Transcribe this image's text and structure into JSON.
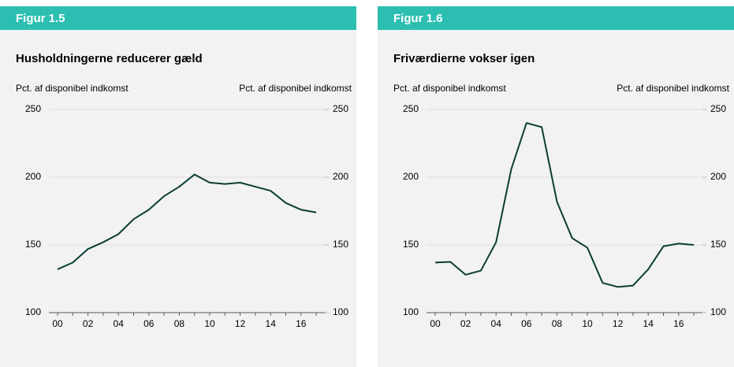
{
  "chart_data": [
    {
      "type": "line",
      "label": "Figur 1.5",
      "title": "Husholdningerne reducerer gæld",
      "ylabel": "Pct. af disponibel indkomst",
      "y2label": "Pct. af disponibel indkomst",
      "categories": [
        "00",
        null,
        "02",
        null,
        "04",
        null,
        "06",
        null,
        "08",
        null,
        "10",
        null,
        "12",
        null,
        "14",
        null,
        "16",
        null
      ],
      "series": [
        {
          "name": null,
          "color": "#0b3d35",
          "values": [
            132,
            137,
            147,
            152,
            158,
            169,
            176,
            186,
            193,
            202,
            196,
            195,
            196,
            193,
            190,
            181,
            176,
            174
          ]
        }
      ],
      "ylim": [
        100,
        250
      ],
      "yticks": [
        100,
        150,
        200,
        250
      ],
      "y2lim": [
        100,
        250
      ],
      "y2ticks": [
        100,
        150,
        200,
        250
      ],
      "grid": true
    },
    {
      "type": "line",
      "label": "Figur 1.6",
      "title": "Friværdierne vokser igen",
      "ylabel": "Pct. af disponibel indkomst",
      "y2label": "Pct. af disponibel indkomst",
      "categories": [
        "00",
        null,
        "02",
        null,
        "04",
        null,
        "06",
        null,
        "08",
        null,
        "10",
        null,
        "12",
        null,
        "14",
        null,
        "16",
        null
      ],
      "series": [
        {
          "name": null,
          "color": "#0b3d35",
          "values": [
            137,
            137.5,
            128,
            131,
            152,
            206,
            240,
            237,
            182,
            155,
            148,
            122,
            119,
            120,
            132,
            149,
            151,
            150
          ]
        }
      ],
      "ylim": [
        100,
        250
      ],
      "yticks": [
        100,
        150,
        200,
        250
      ],
      "y2lim": [
        100,
        250
      ],
      "y2ticks": [
        100,
        150,
        200,
        250
      ],
      "grid": true
    }
  ]
}
